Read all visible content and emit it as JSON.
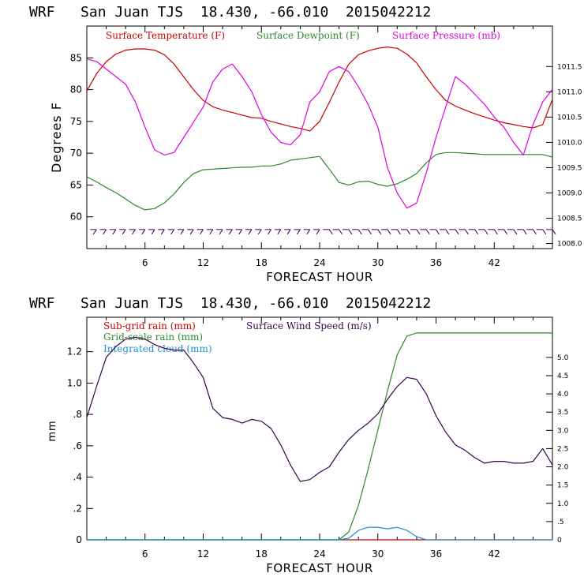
{
  "chart_data": [
    {
      "type": "line",
      "title": "WRF   San Juan TJS  18.430, -66.010  2015042212",
      "xlabel": "FORECAST HOUR",
      "ylabel": "Degrees F",
      "xlim": [
        0,
        48
      ],
      "ylim": [
        55,
        90
      ],
      "y2lim": [
        1007.9,
        1012.3
      ],
      "x_ticks": [
        "6",
        "12",
        "18",
        "24",
        "30",
        "36",
        "42"
      ],
      "y_ticks": [
        "60",
        "65",
        "70",
        "75",
        "80",
        "85"
      ],
      "y2_ticks": [
        "1008.0",
        "1008.5",
        "1009.0",
        "1009.5",
        "1010.0",
        "1010.5",
        "1011.0",
        "1011.5"
      ],
      "series": [
        {
          "name": "Surface Temperature (F)",
          "color": "#cc0000",
          "axis": "left",
          "x": [
            0,
            1,
            2,
            3,
            4,
            5,
            6,
            7,
            8,
            9,
            10,
            11,
            12,
            13,
            14,
            15,
            16,
            17,
            18,
            19,
            20,
            21,
            22,
            23,
            24,
            25,
            26,
            27,
            28,
            29,
            30,
            31,
            32,
            33,
            34,
            35,
            36,
            37,
            38,
            39,
            40,
            41,
            42,
            43,
            44,
            45,
            46,
            47,
            48
          ],
          "values": [
            79.8,
            82.5,
            84.4,
            85.6,
            86.2,
            86.4,
            86.4,
            86.2,
            85.5,
            84,
            82,
            80,
            78.3,
            77.3,
            76.8,
            76.4,
            76,
            75.6,
            75.5,
            75,
            74.6,
            74.2,
            73.9,
            73.5,
            75,
            78,
            81.2,
            84,
            85.5,
            86.1,
            86.5,
            86.7,
            86.5,
            85.6,
            84.2,
            82,
            80,
            78.3,
            77.4,
            76.8,
            76.2,
            75.7,
            75.2,
            74.8,
            74.5,
            74.2,
            74,
            74.5,
            78.5
          ]
        },
        {
          "name": "Surface Dewpoint (F)",
          "color": "#2a8a2a",
          "axis": "left",
          "x": [
            0,
            1,
            2,
            3,
            4,
            5,
            6,
            7,
            8,
            9,
            10,
            11,
            12,
            13,
            14,
            15,
            16,
            17,
            18,
            19,
            20,
            21,
            22,
            23,
            24,
            25,
            26,
            27,
            28,
            29,
            30,
            31,
            32,
            33,
            34,
            35,
            36,
            37,
            38,
            39,
            40,
            41,
            42,
            43,
            44,
            45,
            46,
            47,
            48
          ],
          "values": [
            66.3,
            65.5,
            64.6,
            63.8,
            62.8,
            61.8,
            61.1,
            61.3,
            62.2,
            63.6,
            65.4,
            66.8,
            67.4,
            67.5,
            67.6,
            67.7,
            67.8,
            67.8,
            68,
            68,
            68.3,
            68.9,
            69.1,
            69.3,
            69.5,
            67.5,
            65.4,
            65,
            65.5,
            65.6,
            65.1,
            64.8,
            65.2,
            65.9,
            66.8,
            68.5,
            69.8,
            70.1,
            70.1,
            70,
            69.9,
            69.8,
            69.8,
            69.8,
            69.8,
            69.8,
            69.8,
            69.8,
            69.4
          ]
        },
        {
          "name": "Surface Pressure (mb)",
          "color": "#e000e0",
          "axis": "right",
          "x": [
            0,
            1,
            2,
            3,
            4,
            5,
            6,
            7,
            8,
            9,
            10,
            11,
            12,
            13,
            14,
            15,
            16,
            17,
            18,
            19,
            20,
            21,
            22,
            23,
            24,
            25,
            26,
            27,
            28,
            29,
            30,
            31,
            32,
            33,
            34,
            35,
            36,
            37,
            38,
            39,
            40,
            41,
            42,
            43,
            44,
            45,
            46,
            47,
            48
          ],
          "values": [
            1011.65,
            1011.6,
            1011.45,
            1011.3,
            1011.15,
            1010.8,
            1010.3,
            1009.85,
            1009.75,
            1009.8,
            1010.1,
            1010.4,
            1010.7,
            1011.2,
            1011.45,
            1011.55,
            1011.3,
            1011,
            1010.55,
            1010.2,
            1010,
            1009.95,
            1010.15,
            1010.8,
            1011.0,
            1011.4,
            1011.5,
            1011.4,
            1011.1,
            1010.75,
            1010.3,
            1009.5,
            1009,
            1008.7,
            1008.8,
            1009.4,
            1010.1,
            1010.7,
            1011.3,
            1011.15,
            1010.95,
            1010.75,
            1010.5,
            1010.3,
            1010.0,
            1009.75,
            1010.35,
            1010.8,
            1011.05
          ]
        }
      ],
      "wind_barbs": {
        "row_value": 58,
        "count": 48
      }
    },
    {
      "type": "line",
      "title": "WRF   San Juan TJS  18.430, -66.010  2015042212",
      "xlabel": "FORECAST HOUR",
      "ylabel": "mm",
      "xlim": [
        0,
        48
      ],
      "ylim": [
        0,
        1.42
      ],
      "y2lim": [
        0,
        6.1
      ],
      "x_ticks": [
        "6",
        "12",
        "18",
        "24",
        "30",
        "36",
        "42"
      ],
      "y_ticks": [
        "0",
        ".2",
        ".4",
        ".6",
        ".8",
        "1.0",
        "1.2"
      ],
      "y2_ticks": [
        "0",
        ".5",
        "1.0",
        "1.5",
        "2.0",
        "2.5",
        "3.0",
        "3.5",
        "4.0",
        "4.5",
        "5.0"
      ],
      "series": [
        {
          "name": "Sub-grid rain (mm)",
          "color": "#cc0000",
          "axis": "left",
          "x": [
            0,
            48
          ],
          "values": [
            0,
            0
          ]
        },
        {
          "name": "Grid-scale rain (mm)",
          "color": "#2a8a2a",
          "axis": "left",
          "x": [
            0,
            26,
            27,
            28,
            29,
            30,
            31,
            32,
            33,
            34,
            36,
            40,
            44,
            48
          ],
          "values": [
            0,
            0,
            0.05,
            0.22,
            0.45,
            0.7,
            0.95,
            1.18,
            1.3,
            1.32,
            1.32,
            1.32,
            1.32,
            1.32
          ]
        },
        {
          "name": "Integrated cloud (mm)",
          "color": "#1f8fd0",
          "axis": "left",
          "x": [
            0,
            26,
            27,
            28,
            29,
            30,
            31,
            32,
            33,
            34,
            35,
            48
          ],
          "values": [
            0,
            0,
            0.01,
            0.06,
            0.08,
            0.08,
            0.07,
            0.08,
            0.06,
            0.02,
            0,
            0
          ]
        },
        {
          "name": "Surface Wind Speed (m/s)",
          "color": "#3a0050",
          "axis": "right",
          "x": [
            0,
            1,
            2,
            3,
            4,
            5,
            6,
            7,
            8,
            9,
            10,
            11,
            12,
            13,
            14,
            15,
            16,
            17,
            18,
            19,
            20,
            21,
            22,
            23,
            24,
            25,
            26,
            27,
            28,
            29,
            30,
            31,
            32,
            33,
            34,
            35,
            36,
            37,
            38,
            39,
            40,
            41,
            42,
            43,
            44,
            45,
            46,
            47,
            48
          ],
          "values": [
            3.35,
            4.2,
            5.0,
            5.3,
            5.5,
            5.55,
            5.5,
            5.35,
            5.25,
            5.2,
            5.2,
            4.85,
            4.45,
            3.6,
            3.35,
            3.3,
            3.2,
            3.3,
            3.25,
            3.05,
            2.6,
            2.05,
            1.6,
            1.65,
            1.85,
            2.0,
            2.4,
            2.75,
            3.0,
            3.2,
            3.45,
            3.85,
            4.2,
            4.45,
            4.4,
            4.0,
            3.4,
            2.95,
            2.6,
            2.45,
            2.25,
            2.1,
            2.15,
            2.15,
            2.1,
            2.1,
            2.15,
            2.5,
            2.05
          ]
        }
      ]
    }
  ]
}
